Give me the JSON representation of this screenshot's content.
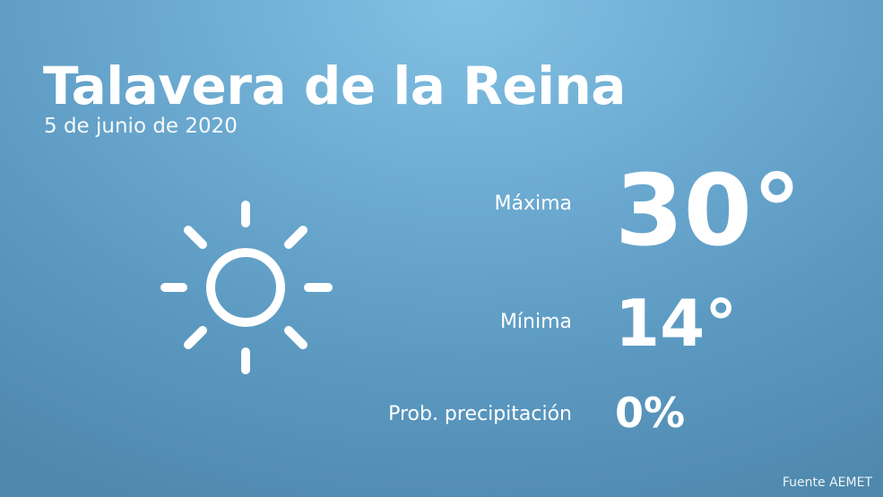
{
  "city": "Talavera de la Reina",
  "date": "5 de junio de 2020",
  "weather_icon": "sun-icon",
  "max": {
    "label": "Máxima",
    "value": "30°"
  },
  "min": {
    "label": "Mínima",
    "value": "14°"
  },
  "precip": {
    "label": "Prob. precipitación",
    "value": "0%"
  },
  "source": "Fuente AEMET",
  "colors": {
    "background_top": "#82c2e4",
    "background_bottom": "#4f88ad",
    "text": "#ffffff"
  }
}
